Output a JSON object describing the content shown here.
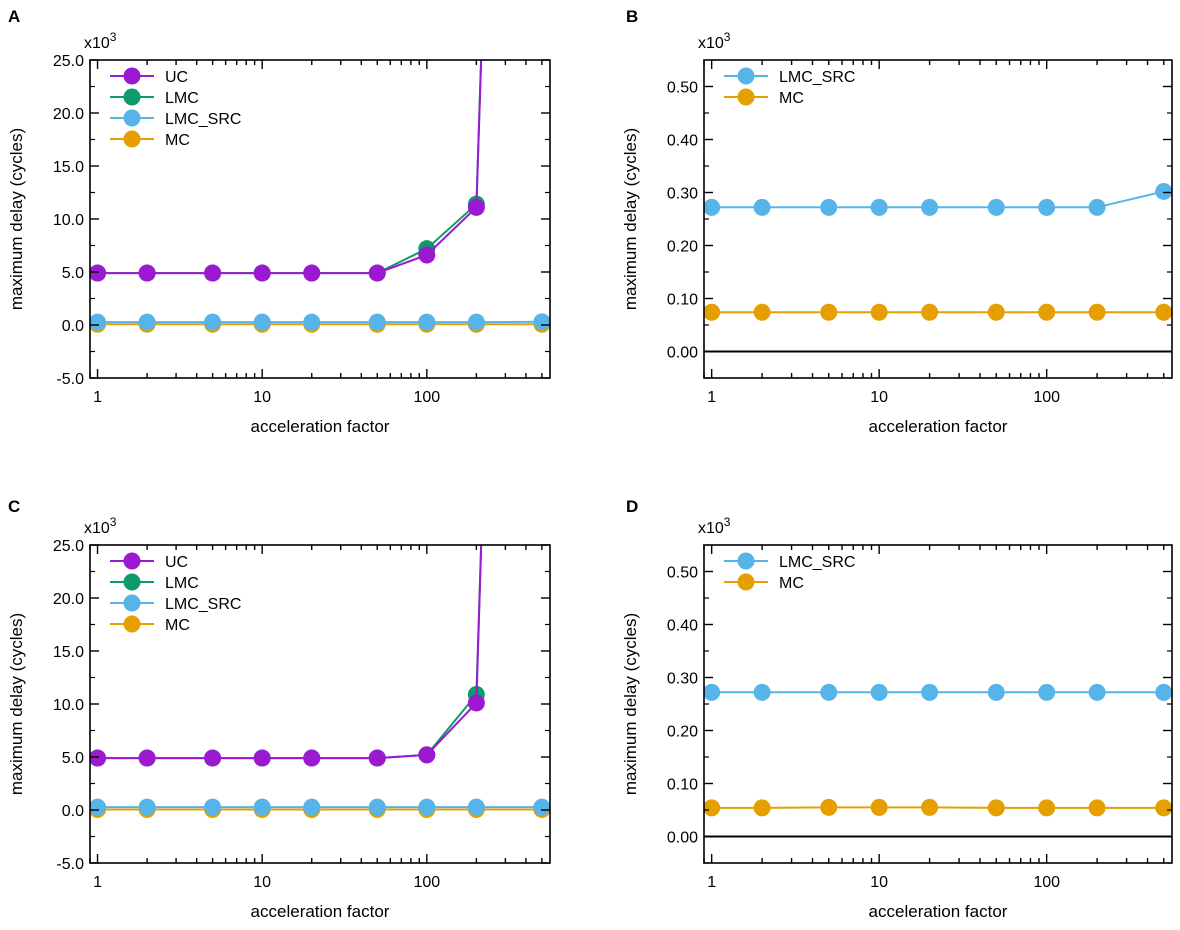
{
  "chart_data": [
    {
      "panel": "A",
      "type": "line",
      "xscale": "log",
      "x": [
        1,
        2,
        5,
        10,
        20,
        50,
        100,
        200,
        500
      ],
      "xlim": [
        0.9,
        560
      ],
      "xticks": [
        1,
        10,
        100
      ],
      "xtick_labels": [
        "1",
        "10",
        "100"
      ],
      "ylim": [
        -5.0,
        25.0
      ],
      "yticks": [
        -5,
        0,
        5,
        10,
        15,
        20,
        25
      ],
      "ytick_labels": [
        "-5.0",
        "0.0",
        "5.0",
        "10.0",
        "15.0",
        "20.0",
        "25.0"
      ],
      "multiplier": "x10",
      "multiplier_exp": "3",
      "xlabel": "acceleration factor",
      "ylabel": "maximum delay (cycles)",
      "zero_line": false,
      "legend_position": "top-left",
      "series": [
        {
          "name": "UC",
          "color": "#9b19d1",
          "values": [
            4.9,
            4.9,
            4.9,
            4.9,
            4.9,
            4.9,
            6.6,
            11.1,
            null
          ],
          "offscale_after": 200
        },
        {
          "name": "LMC",
          "color": "#0f9a6e",
          "values": [
            4.9,
            4.9,
            4.9,
            4.9,
            4.9,
            4.9,
            7.2,
            11.4,
            null
          ],
          "offscale_after": 200
        },
        {
          "name": "LMC_SRC",
          "color": "#56b4e9",
          "values": [
            0.27,
            0.27,
            0.27,
            0.27,
            0.27,
            0.27,
            0.27,
            0.27,
            0.3
          ]
        },
        {
          "name": "MC",
          "color": "#e69f00",
          "values": [
            0.07,
            0.07,
            0.07,
            0.07,
            0.07,
            0.07,
            0.07,
            0.07,
            0.07
          ]
        }
      ]
    },
    {
      "panel": "B",
      "type": "line",
      "xscale": "log",
      "x": [
        1,
        2,
        5,
        10,
        20,
        50,
        100,
        200,
        500
      ],
      "xlim": [
        0.9,
        560
      ],
      "xticks": [
        1,
        10,
        100
      ],
      "xtick_labels": [
        "1",
        "10",
        "100"
      ],
      "ylim": [
        -0.05,
        0.55
      ],
      "yticks": [
        0.0,
        0.1,
        0.2,
        0.3,
        0.4,
        0.5
      ],
      "ytick_labels": [
        "0.00",
        "0.10",
        "0.20",
        "0.30",
        "0.40",
        "0.50"
      ],
      "multiplier": "x10",
      "multiplier_exp": "3",
      "xlabel": "acceleration factor",
      "ylabel": "maximum delay (cycles)",
      "zero_line": true,
      "legend_position": "top-left",
      "series": [
        {
          "name": "LMC_SRC",
          "color": "#56b4e9",
          "values": [
            0.272,
            0.272,
            0.272,
            0.272,
            0.272,
            0.272,
            0.272,
            0.272,
            0.302
          ]
        },
        {
          "name": "MC",
          "color": "#e69f00",
          "values": [
            0.074,
            0.074,
            0.074,
            0.074,
            0.074,
            0.074,
            0.074,
            0.074,
            0.074
          ]
        }
      ]
    },
    {
      "panel": "C",
      "type": "line",
      "xscale": "log",
      "x": [
        1,
        2,
        5,
        10,
        20,
        50,
        100,
        200,
        500
      ],
      "xlim": [
        0.9,
        560
      ],
      "xticks": [
        1,
        10,
        100
      ],
      "xtick_labels": [
        "1",
        "10",
        "100"
      ],
      "ylim": [
        -5.0,
        25.0
      ],
      "yticks": [
        -5,
        0,
        5,
        10,
        15,
        20,
        25
      ],
      "ytick_labels": [
        "-5.0",
        "0.0",
        "5.0",
        "10.0",
        "15.0",
        "20.0",
        "25.0"
      ],
      "multiplier": "x10",
      "multiplier_exp": "3",
      "xlabel": "acceleration factor",
      "ylabel": "maximum delay (cycles)",
      "zero_line": false,
      "legend_position": "top-left",
      "series": [
        {
          "name": "UC",
          "color": "#9b19d1",
          "values": [
            4.9,
            4.9,
            4.9,
            4.9,
            4.9,
            4.9,
            5.2,
            10.1,
            null
          ],
          "offscale_after": 200
        },
        {
          "name": "LMC",
          "color": "#0f9a6e",
          "values": [
            4.9,
            4.9,
            4.9,
            4.9,
            4.9,
            4.9,
            5.2,
            10.9,
            null
          ],
          "offscale_after": 200
        },
        {
          "name": "LMC_SRC",
          "color": "#56b4e9",
          "values": [
            0.27,
            0.27,
            0.27,
            0.27,
            0.27,
            0.27,
            0.27,
            0.27,
            0.27
          ]
        },
        {
          "name": "MC",
          "color": "#e69f00",
          "values": [
            0.05,
            0.05,
            0.05,
            0.05,
            0.05,
            0.05,
            0.05,
            0.05,
            0.05
          ]
        }
      ]
    },
    {
      "panel": "D",
      "type": "line",
      "xscale": "log",
      "x": [
        1,
        2,
        5,
        10,
        20,
        50,
        100,
        200,
        500
      ],
      "xlim": [
        0.9,
        560
      ],
      "xticks": [
        1,
        10,
        100
      ],
      "xtick_labels": [
        "1",
        "10",
        "100"
      ],
      "ylim": [
        -0.05,
        0.55
      ],
      "yticks": [
        0.0,
        0.1,
        0.2,
        0.3,
        0.4,
        0.5
      ],
      "ytick_labels": [
        "0.00",
        "0.10",
        "0.20",
        "0.30",
        "0.40",
        "0.50"
      ],
      "multiplier": "x10",
      "multiplier_exp": "3",
      "xlabel": "acceleration factor",
      "ylabel": "maximum delay (cycles)",
      "zero_line": true,
      "legend_position": "top-left",
      "series": [
        {
          "name": "LMC_SRC",
          "color": "#56b4e9",
          "values": [
            0.272,
            0.272,
            0.272,
            0.272,
            0.272,
            0.272,
            0.272,
            0.272,
            0.272
          ]
        },
        {
          "name": "MC",
          "color": "#e69f00",
          "values": [
            0.054,
            0.054,
            0.055,
            0.055,
            0.055,
            0.054,
            0.054,
            0.054,
            0.054
          ]
        }
      ]
    }
  ]
}
